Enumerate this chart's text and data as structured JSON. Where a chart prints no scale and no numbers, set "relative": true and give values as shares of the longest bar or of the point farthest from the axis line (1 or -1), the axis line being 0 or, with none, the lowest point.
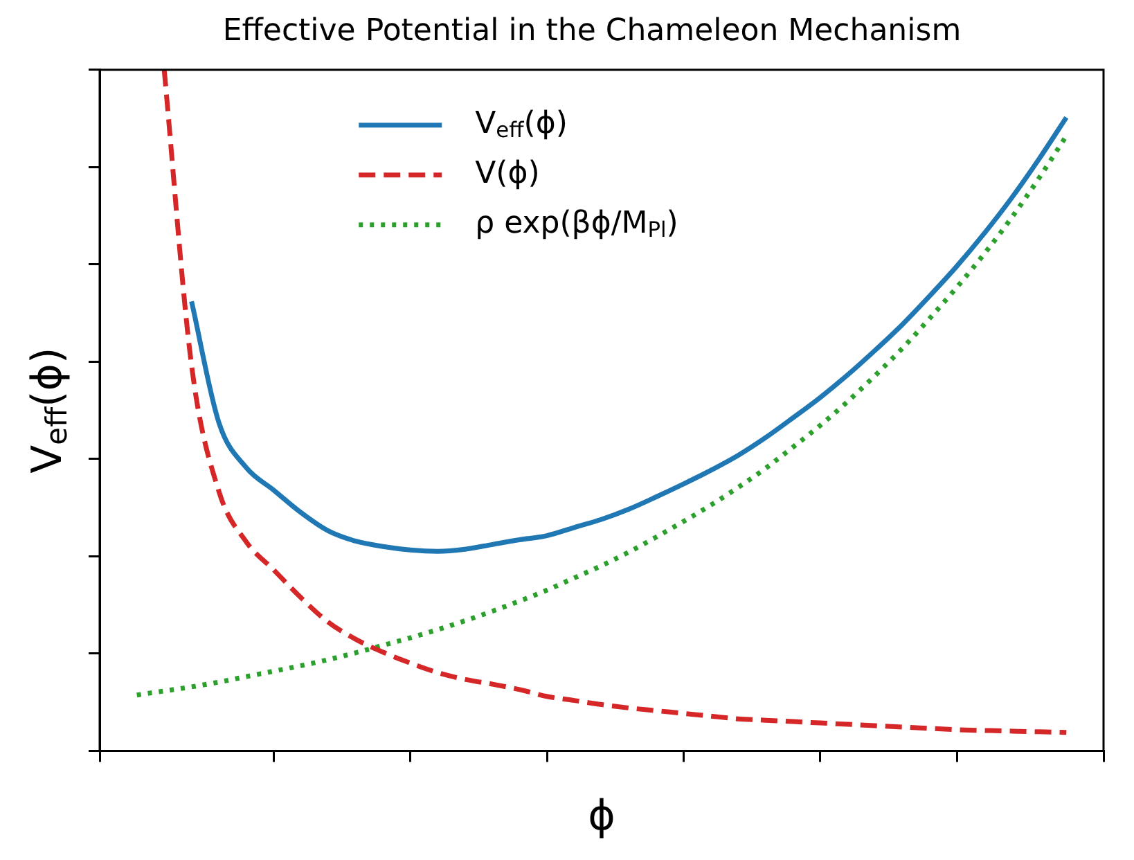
{
  "chart_data": {
    "type": "line",
    "title": "Effective Potential in the Chameleon Mechanism",
    "xlabel": "ϕ",
    "ylabel": "V$_{eff}$(ϕ)",
    "relative": true,
    "grid": false,
    "legend": "top",
    "tick_labels": false,
    "marker": "none",
    "categories": [
      null,
      null,
      null,
      null,
      null,
      null,
      null,
      null,
      null,
      null,
      null,
      null,
      null,
      null,
      null,
      null,
      null,
      null,
      null,
      null,
      null,
      null,
      null,
      null,
      null,
      null,
      null,
      null,
      null,
      null,
      null,
      null,
      null,
      null,
      null
    ],
    "series": [
      {
        "name": "V$_{eff}$(ϕ)",
        "color": "#1f77b4",
        "line_style": "solid",
        "values": [
          null,
          null,
          0.66,
          0.482,
          0.416,
          0.383,
          0.35,
          0.323,
          0.308,
          0.3,
          0.295,
          0.293,
          0.296,
          0.303,
          0.31,
          0.316,
          0.328,
          0.34,
          0.355,
          0.373,
          0.392,
          0.412,
          0.434,
          0.46,
          0.489,
          0.519,
          0.552,
          0.588,
          0.626,
          0.668,
          0.712,
          0.76,
          0.812,
          0.869,
          0.93
        ]
      },
      {
        "name": "V(ϕ)",
        "color": "#d62728",
        "line_style": "dashed",
        "values": [
          null,
          1.0,
          0.566,
          0.381,
          0.307,
          0.266,
          0.225,
          0.189,
          0.164,
          0.145,
          0.129,
          0.115,
          0.105,
          0.098,
          0.09,
          0.08,
          0.074,
          0.068,
          0.063,
          0.059,
          0.055,
          0.051,
          0.047,
          0.045,
          0.043,
          0.041,
          0.039,
          0.037,
          0.035,
          0.033,
          0.031,
          0.03,
          0.029,
          0.028,
          0.027
        ]
      },
      {
        "name": "ρ exp(βϕ/M$_{Pl}$)",
        "color": "#2ca02c",
        "line_style": "dotted",
        "values": [
          0.082,
          0.088,
          0.094,
          0.101,
          0.109,
          0.117,
          0.125,
          0.134,
          0.144,
          0.155,
          0.166,
          0.178,
          0.191,
          0.205,
          0.22,
          0.236,
          0.254,
          0.272,
          0.292,
          0.314,
          0.337,
          0.361,
          0.387,
          0.415,
          0.446,
          0.478,
          0.513,
          0.551,
          0.591,
          0.635,
          0.681,
          0.73,
          0.783,
          0.841,
          0.903
        ]
      }
    ]
  }
}
